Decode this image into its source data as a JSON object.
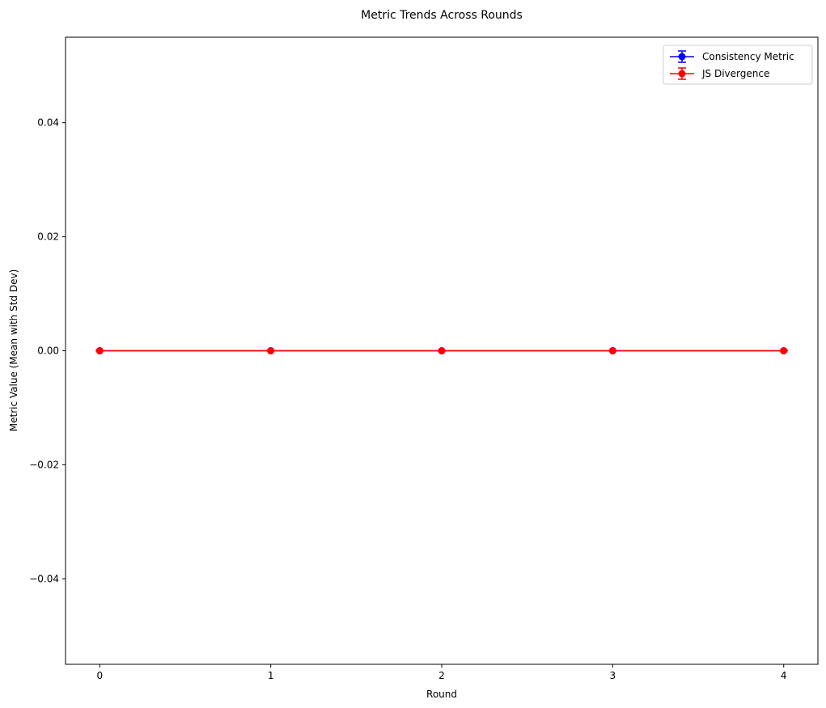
{
  "chart_data": {
    "type": "line",
    "title": "Metric Trends Across Rounds",
    "xlabel": "Round",
    "ylabel": "Metric Value (Mean with Std Dev)",
    "x": [
      0,
      1,
      2,
      3,
      4
    ],
    "xticks": [
      "0",
      "1",
      "2",
      "3",
      "4"
    ],
    "xlim": [
      -0.2,
      4.2
    ],
    "ylim": [
      -0.055,
      0.055
    ],
    "yticks": [
      -0.04,
      -0.02,
      0.0,
      0.02,
      0.04
    ],
    "ytick_labels": [
      "−0.04",
      "−0.02",
      "0.00",
      "0.02",
      "0.04"
    ],
    "grid": false,
    "legend_position": "top-right",
    "series": [
      {
        "name": "Consistency Metric",
        "color": "#0000ff",
        "values": [
          0,
          0,
          0,
          0,
          0
        ],
        "std": [
          0,
          0,
          0,
          0,
          0
        ],
        "marker": "circle"
      },
      {
        "name": "JS Divergence",
        "color": "#ff0000",
        "values": [
          0,
          0,
          0,
          0,
          0
        ],
        "std": [
          0,
          0,
          0,
          0,
          0
        ],
        "marker": "circle"
      }
    ]
  }
}
